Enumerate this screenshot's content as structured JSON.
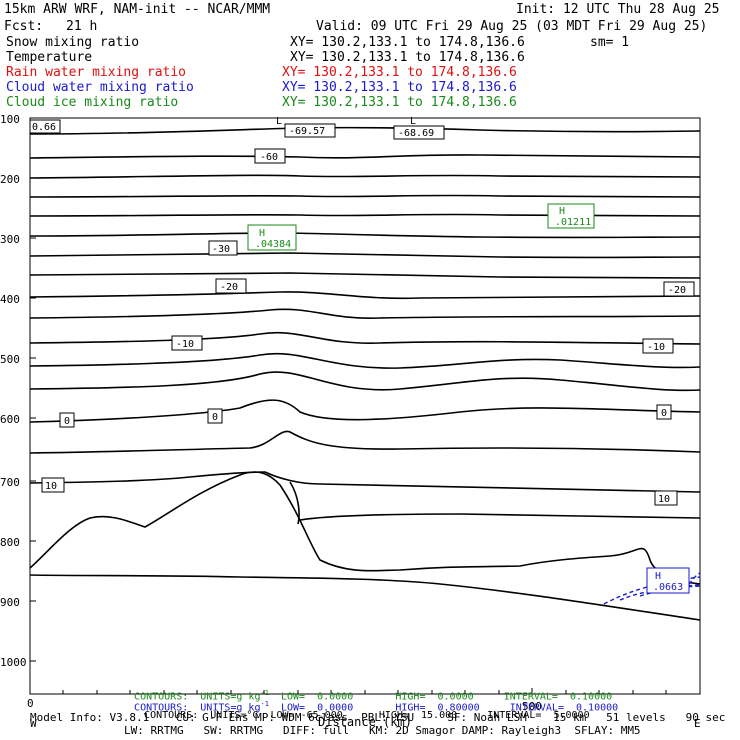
{
  "header": {
    "model": "15km ARW WRF, NAM-init -- NCAR/MMM",
    "init": "Init: 12 UTC Thu 28 Aug 25",
    "fcst_label": "Fcst:",
    "fcst_value": "21 h",
    "valid": "Valid: 09 UTC Fri 29 Aug 25 (03 MDT Fri 29 Aug 25)",
    "lines": [
      {
        "name": "Snow mixing ratio",
        "xy": "XY= 130.2,133.1 to 174.8,136.6",
        "extra": "sm= 1",
        "color": "#000000"
      },
      {
        "name": "Temperature",
        "xy": "XY= 130.2,133.1 to 174.8,136.6",
        "extra": "",
        "color": "#000000"
      },
      {
        "name": "Rain water mixing ratio",
        "xy": "XY= 130.2,133.1 to 174.8,136.6",
        "extra": "",
        "color": "#e01010"
      },
      {
        "name": "Cloud water mixing ratio",
        "xy": "XY= 130.2,133.1 to 174.8,136.6",
        "extra": "",
        "color": "#1a1acc"
      },
      {
        "name": "Cloud ice mixing ratio",
        "xy": "XY= 130.2,133.1 to 174.8,136.6",
        "extra": "",
        "color": "#1a8a1a"
      }
    ]
  },
  "chart_data": {
    "type": "line",
    "xlabel": "Distance (km)",
    "x_ticks": [
      "0",
      "500"
    ],
    "y_ticks": [
      "100",
      "200",
      "300",
      "400",
      "500",
      "600",
      "700",
      "800",
      "900",
      "1000"
    ],
    "ylim": [
      1000,
      100
    ],
    "grid": false,
    "temperature_labels": [
      "-69.57",
      "-68.69",
      "-60",
      "-30",
      "-20",
      "-20",
      "-10",
      "-10",
      "0",
      "0",
      "0",
      "10",
      "10",
      "0.66"
    ],
    "max_labels": [
      {
        "letter": "H",
        "value": ".04384",
        "color": "#1a8a1a"
      },
      {
        "letter": "H",
        "value": ".01211",
        "color": "#1a8a1a"
      },
      {
        "letter": "H",
        "value": ".0663",
        "color": "#1a1acc"
      }
    ],
    "minmax_marks": [
      {
        "letter": "L",
        "value": "-69.57"
      },
      {
        "letter": "L",
        "value": "-68.69"
      }
    ]
  },
  "contours": [
    {
      "text": "CONTOURS:  UNITS=g kg",
      "sup": "-1",
      "low": "LOW=  0.0000",
      "high": "HIGH=  0.0000",
      "interval": "INTERVAL=  0.10000",
      "color": "#1a8a1a"
    },
    {
      "text": "CONTOURS:  UNITS=g kg",
      "sup": "-1",
      "low": "LOW=  0.0000",
      "high": "HIGH=  0.80000",
      "interval": "INTERVAL=  0.10000",
      "color": "#1a1acc"
    },
    {
      "text": "CONTOURS:  UNITS=°C",
      "sup": "",
      "low": "LOW= -65.000",
      "high": "HIGH=  15.000",
      "interval": "INTERVAL=  5.0000",
      "color": "#000000"
    }
  ],
  "footer": {
    "line1": "Model Info: V3.8.1    CU: G-F Ens MP: WDM 6class  PBL: YSU     SF: Noah LSM    15 km   51 levels   90 sec",
    "line2": "LW: RRTMG   SW: RRTMG   DIFF: full   KM: 2D Smagor DAMP: Rayleigh3  SFLAY: MM5",
    "left_marker": "W",
    "right_marker": "E"
  }
}
